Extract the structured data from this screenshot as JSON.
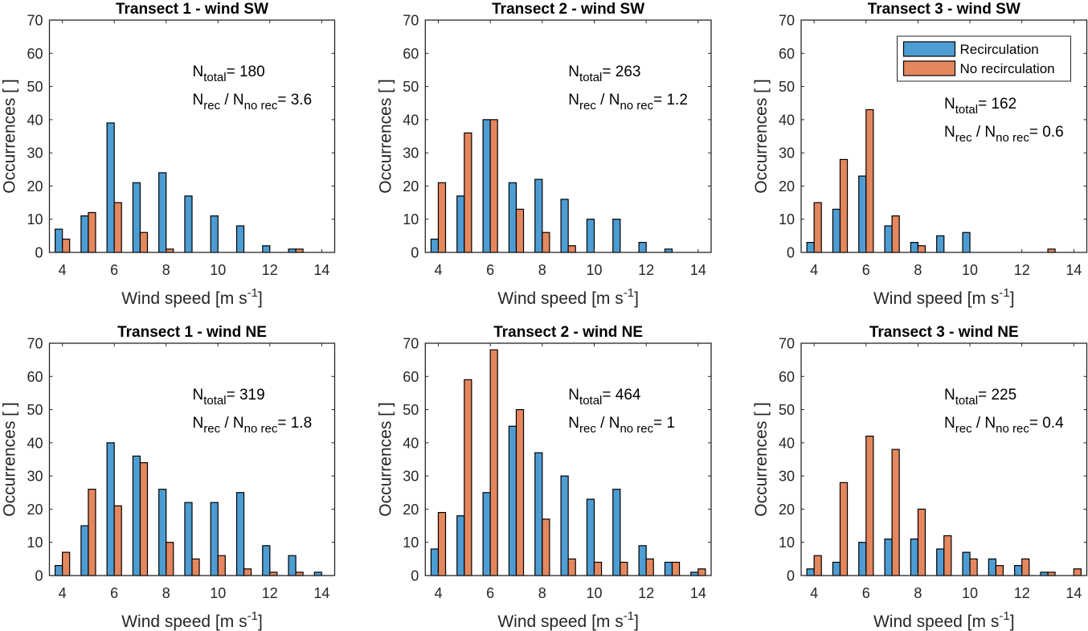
{
  "chart_data": [
    {
      "type": "bar",
      "title": "Transect 1 - wind SW",
      "xlabel": "Wind speed [m s^-1]",
      "xlabel_main": "Wind speed [m s",
      "xlabel_sup": "-1",
      "xlabel_end": "]",
      "ylabel": "Occurrences [ ]",
      "xlim": [
        3.5,
        14.5
      ],
      "ylim": [
        0,
        70
      ],
      "xticks": [
        4,
        6,
        8,
        10,
        12,
        14
      ],
      "yticks": [
        0,
        10,
        20,
        30,
        40,
        50,
        60,
        70
      ],
      "x": [
        4,
        5,
        6,
        7,
        8,
        9,
        10,
        11,
        12,
        13,
        14
      ],
      "series": [
        {
          "name": "Recirculation",
          "values": [
            7,
            11,
            39,
            21,
            24,
            17,
            11,
            8,
            2,
            1,
            0
          ]
        },
        {
          "name": "No recirculation",
          "values": [
            4,
            12,
            15,
            6,
            1,
            0,
            0,
            0,
            0,
            1,
            0
          ]
        }
      ],
      "annotation": {
        "n_total": "180",
        "ratio": "3.6"
      },
      "legend": false
    },
    {
      "type": "bar",
      "title": "Transect 2 - wind SW",
      "xlabel": "Wind speed [m s^-1]",
      "xlabel_main": "Wind speed [m s",
      "xlabel_sup": "-1",
      "xlabel_end": "]",
      "ylabel": "Occurrences [ ]",
      "xlim": [
        3.5,
        14.5
      ],
      "ylim": [
        0,
        70
      ],
      "xticks": [
        4,
        6,
        8,
        10,
        12,
        14
      ],
      "yticks": [
        0,
        10,
        20,
        30,
        40,
        50,
        60,
        70
      ],
      "x": [
        4,
        5,
        6,
        7,
        8,
        9,
        10,
        11,
        12,
        13,
        14
      ],
      "series": [
        {
          "name": "Recirculation",
          "values": [
            4,
            17,
            40,
            21,
            22,
            16,
            10,
            10,
            3,
            1,
            0
          ]
        },
        {
          "name": "No recirculation",
          "values": [
            21,
            36,
            40,
            13,
            6,
            2,
            0,
            0,
            0,
            0,
            0
          ]
        }
      ],
      "annotation": {
        "n_total": "263",
        "ratio": "1.2"
      },
      "legend": false
    },
    {
      "type": "bar",
      "title": "Transect 3 - wind SW",
      "xlabel": "Wind speed [m s^-1]",
      "xlabel_main": "Wind speed [m s",
      "xlabel_sup": "-1",
      "xlabel_end": "]",
      "ylabel": "Occurrences [ ]",
      "xlim": [
        3.5,
        14.5
      ],
      "ylim": [
        0,
        70
      ],
      "xticks": [
        4,
        6,
        8,
        10,
        12,
        14
      ],
      "yticks": [
        0,
        10,
        20,
        30,
        40,
        50,
        60,
        70
      ],
      "x": [
        4,
        5,
        6,
        7,
        8,
        9,
        10,
        11,
        12,
        13,
        14
      ],
      "series": [
        {
          "name": "Recirculation",
          "values": [
            3,
            13,
            23,
            8,
            3,
            5,
            6,
            0,
            0,
            0,
            0
          ]
        },
        {
          "name": "No recirculation",
          "values": [
            15,
            28,
            43,
            11,
            2,
            0,
            0,
            0,
            0,
            1,
            0
          ]
        }
      ],
      "annotation": {
        "n_total": "162",
        "ratio": "0.6"
      },
      "legend": true,
      "legend_position": "top-right"
    },
    {
      "type": "bar",
      "title": "Transect 1 -  wind NE",
      "xlabel": "Wind speed [m s^-1]",
      "xlabel_main": "Wind speed [m s",
      "xlabel_sup": "-1",
      "xlabel_end": "]",
      "ylabel": "Occurrences [ ]",
      "xlim": [
        3.5,
        14.5
      ],
      "ylim": [
        0,
        70
      ],
      "xticks": [
        4,
        6,
        8,
        10,
        12,
        14
      ],
      "yticks": [
        0,
        10,
        20,
        30,
        40,
        50,
        60,
        70
      ],
      "x": [
        4,
        5,
        6,
        7,
        8,
        9,
        10,
        11,
        12,
        13,
        14
      ],
      "series": [
        {
          "name": "Recirculation",
          "values": [
            3,
            15,
            40,
            36,
            26,
            22,
            22,
            25,
            9,
            6,
            1
          ]
        },
        {
          "name": "No recirculation",
          "values": [
            7,
            26,
            21,
            34,
            10,
            5,
            6,
            2,
            1,
            1,
            0
          ]
        }
      ],
      "annotation": {
        "n_total": "319",
        "ratio": "1.8"
      },
      "legend": false
    },
    {
      "type": "bar",
      "title": "Transect 2 - wind NE",
      "xlabel": "Wind speed [m s^-1]",
      "xlabel_main": "Wind speed [m s",
      "xlabel_sup": "-1",
      "xlabel_end": "]",
      "ylabel": "Occurrences [ ]",
      "xlim": [
        3.5,
        14.5
      ],
      "ylim": [
        0,
        70
      ],
      "xticks": [
        4,
        6,
        8,
        10,
        12,
        14
      ],
      "yticks": [
        0,
        10,
        20,
        30,
        40,
        50,
        60,
        70
      ],
      "x": [
        4,
        5,
        6,
        7,
        8,
        9,
        10,
        11,
        12,
        13,
        14
      ],
      "series": [
        {
          "name": "Recirculation",
          "values": [
            8,
            18,
            25,
            45,
            37,
            30,
            23,
            26,
            9,
            4,
            1
          ]
        },
        {
          "name": "No recirculation",
          "values": [
            19,
            59,
            68,
            50,
            17,
            5,
            4,
            4,
            5,
            4,
            2
          ]
        }
      ],
      "annotation": {
        "n_total": "464",
        "ratio": "1"
      },
      "legend": false
    },
    {
      "type": "bar",
      "title": "Transect 3 - wind NE",
      "xlabel": "Wind speed [m s^-1]",
      "xlabel_main": "Wind speed [m s",
      "xlabel_sup": "-1",
      "xlabel_end": "]",
      "ylabel": "Occurrences [ ]",
      "xlim": [
        3.5,
        14.5
      ],
      "ylim": [
        0,
        70
      ],
      "xticks": [
        4,
        6,
        8,
        10,
        12,
        14
      ],
      "yticks": [
        0,
        10,
        20,
        30,
        40,
        50,
        60,
        70
      ],
      "x": [
        4,
        5,
        6,
        7,
        8,
        9,
        10,
        11,
        12,
        13,
        14
      ],
      "series": [
        {
          "name": "Recirculation",
          "values": [
            2,
            4,
            10,
            11,
            11,
            8,
            7,
            5,
            3,
            1,
            0
          ]
        },
        {
          "name": "No recirculation",
          "values": [
            6,
            28,
            42,
            38,
            20,
            12,
            5,
            3,
            5,
            1,
            2
          ]
        }
      ],
      "annotation": {
        "n_total": "225",
        "ratio": "0.4"
      },
      "legend": false
    }
  ],
  "annotation_text": {
    "n": "N",
    "total_sub": "total",
    "rec_sub": "rec",
    "slash": " / ",
    "norec_sub": "no rec",
    "equals": "= "
  },
  "legend": {
    "items": [
      {
        "label": "Recirculation",
        "color": "#4d9dd3"
      },
      {
        "label": "No recirculation",
        "color": "#e5875e"
      }
    ]
  },
  "colors": {
    "recirculation": "#4d9dd3",
    "no_recirculation": "#e5875e"
  }
}
